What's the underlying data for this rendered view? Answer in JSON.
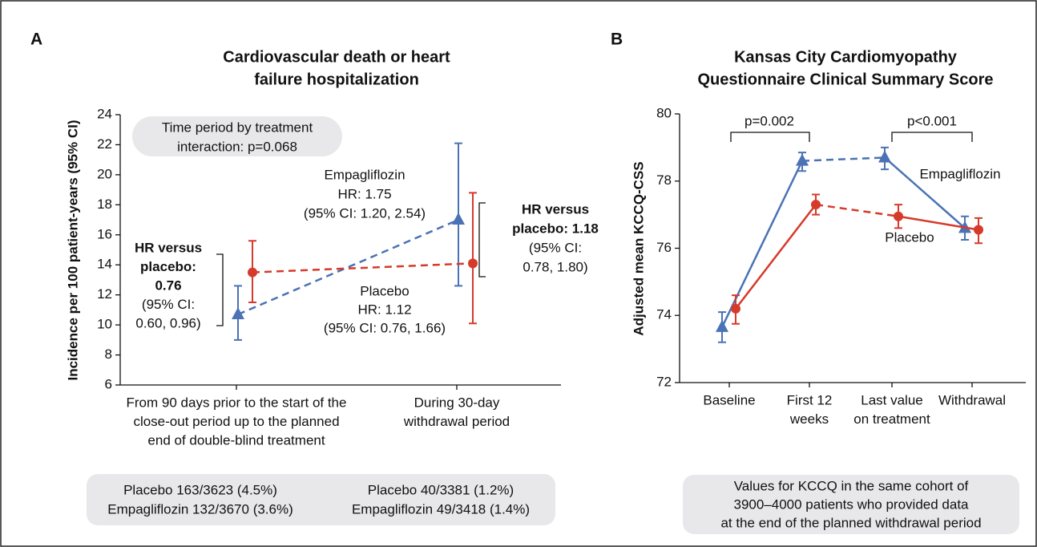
{
  "chart_data": [
    {
      "type": "line",
      "panel_label": "A",
      "title": [
        "Cardiovascular death or heart",
        "failure hospitalization"
      ],
      "y_label": "Incidence per 100 patient-years (95% CI)",
      "categories": [
        [
          "From 90 days prior to the start of the",
          "close-out period up to the planned",
          "end of double-blind treatment"
        ],
        [
          "During 30-day",
          "withdrawal period"
        ]
      ],
      "ylim": [
        6,
        24
      ],
      "yticks": [
        6,
        8,
        10,
        12,
        14,
        16,
        18,
        20,
        22,
        24
      ],
      "segment_styles": [
        "dashed"
      ],
      "series": [
        {
          "name": "Empagliflozin",
          "color": "#4a72b5",
          "marker": "triangle",
          "values": [
            10.7,
            17.0
          ],
          "ci_low": [
            9.0,
            12.6
          ],
          "ci_high": [
            12.6,
            22.1
          ]
        },
        {
          "name": "Placebo",
          "color": "#d63a2a",
          "marker": "circle",
          "values": [
            13.5,
            14.1
          ],
          "ci_low": [
            11.5,
            10.1
          ],
          "ci_high": [
            15.6,
            18.8
          ]
        }
      ],
      "annotations": {
        "interaction": [
          "Time period by treatment",
          "interaction: p=0.068"
        ],
        "empagliflozin_hr": [
          "HR: 1.75",
          "(95% CI: 1.20, 2.54)"
        ],
        "placebo_hr": [
          "HR: 1.12",
          "(95% CI: 0.76, 1.66)"
        ],
        "hr_first": [
          "HR versus",
          "placebo:",
          "0.76",
          "(95% CI:",
          "0.60, 0.96)"
        ],
        "hr_second": [
          "HR versus",
          "placebo: 1.18",
          "(95% CI:",
          "0.78, 1.80)"
        ],
        "counts": [
          [
            "Placebo 163/3623 (4.5%)",
            "Empagliflozin 132/3670 (3.6%)"
          ],
          [
            "Placebo 40/3381 (1.2%)",
            "Empagliflozin 49/3418 (1.4%)"
          ]
        ]
      }
    },
    {
      "type": "line",
      "panel_label": "B",
      "title": [
        "Kansas City Cardiomyopathy",
        "Questionnaire Clinical Summary Score"
      ],
      "y_label": "Adjusted mean KCCQ-CSS",
      "categories": [
        [
          "Baseline"
        ],
        [
          "First 12",
          "weeks"
        ],
        [
          "Last value",
          "on treatment"
        ],
        [
          "Withdrawal"
        ]
      ],
      "ylim": [
        72,
        80
      ],
      "yticks": [
        72,
        74,
        76,
        78,
        80
      ],
      "segment_styles": [
        "solid",
        "dashed",
        "solid"
      ],
      "series": [
        {
          "name": "Empagliflozin",
          "color": "#4a72b5",
          "marker": "triangle",
          "values": [
            73.65,
            78.6,
            78.7,
            76.6
          ],
          "ci_low": [
            73.2,
            78.3,
            78.35,
            76.25
          ],
          "ci_high": [
            74.1,
            78.85,
            79.0,
            76.95
          ]
        },
        {
          "name": "Placebo",
          "color": "#d63a2a",
          "marker": "circle",
          "values": [
            74.2,
            77.3,
            76.95,
            76.55
          ],
          "ci_low": [
            73.75,
            77.0,
            76.6,
            76.15
          ],
          "ci_high": [
            74.6,
            77.6,
            77.3,
            76.9
          ]
        }
      ],
      "annotations": {
        "brackets": [
          "p=0.002",
          "p<0.001"
        ],
        "note": [
          "Values for KCCQ in the same cohort of",
          "3900–4000 patients who provided data",
          "at the end of the planned withdrawal period"
        ]
      }
    }
  ]
}
